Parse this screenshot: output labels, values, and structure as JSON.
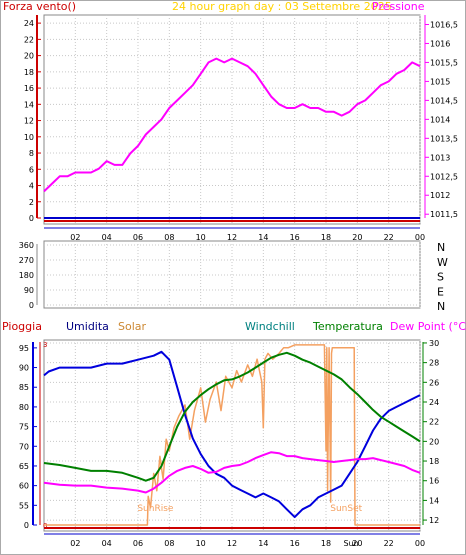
{
  "chart_data": [
    {
      "type": "line",
      "title": "24 hour graph day : 03 Settembre 2025",
      "left_label": "Forza vento()",
      "right_label": "Pressione",
      "x_ticks": [
        "02",
        "04",
        "06",
        "08",
        "10",
        "12",
        "14",
        "16",
        "18",
        "20",
        "22",
        "00"
      ],
      "x_range": [
        0,
        24
      ],
      "y_left_ticks": [
        "0",
        "2",
        "4",
        "6",
        "8",
        "10",
        "12",
        "14",
        "16",
        "18",
        "20",
        "22",
        "24"
      ],
      "ylim_left": [
        0,
        25
      ],
      "y_right_ticks": [
        "1011,5",
        "1012",
        "1012,5",
        "1013",
        "1013,5",
        "1014",
        "1014,5",
        "1015",
        "1015,5",
        "1016",
        "1016,5"
      ],
      "ylim_right": [
        1011.4,
        1016.75
      ],
      "grid": true,
      "series": [
        {
          "name": "Pressione",
          "axis": "right",
          "color": "#ff00ff",
          "x": [
            0.0,
            0.5,
            1.0,
            1.5,
            2.0,
            2.5,
            3.0,
            3.5,
            4.0,
            4.5,
            5.0,
            5.5,
            6.0,
            6.5,
            7.0,
            7.5,
            8.0,
            8.5,
            9.0,
            9.5,
            10.0,
            10.5,
            11.0,
            11.5,
            12.0,
            12.5,
            13.0,
            13.5,
            14.0,
            14.5,
            15.0,
            15.5,
            16.0,
            16.5,
            17.0,
            17.5,
            18.0,
            18.5,
            19.0,
            19.5,
            20.0,
            20.5,
            21.0,
            21.5,
            22.0,
            22.5,
            23.0,
            23.5,
            24.0
          ],
          "y": [
            1012.1,
            1012.3,
            1012.5,
            1012.5,
            1012.6,
            1012.6,
            1012.6,
            1012.7,
            1012.9,
            1012.8,
            1012.8,
            1013.1,
            1013.3,
            1013.6,
            1013.8,
            1014.0,
            1014.3,
            1014.5,
            1014.7,
            1014.9,
            1015.2,
            1015.5,
            1015.6,
            1015.5,
            1015.6,
            1015.5,
            1015.4,
            1015.2,
            1014.9,
            1014.6,
            1014.4,
            1014.3,
            1014.3,
            1014.4,
            1014.3,
            1014.3,
            1014.2,
            1014.2,
            1014.1,
            1014.2,
            1014.4,
            1014.5,
            1014.7,
            1014.9,
            1015.0,
            1015.2,
            1015.3,
            1015.5,
            1015.4
          ]
        },
        {
          "name": "Forza vento",
          "axis": "left",
          "color": "#0000cc",
          "x": [
            0,
            24
          ],
          "y": [
            0,
            0
          ]
        }
      ]
    },
    {
      "type": "scatter",
      "title": "",
      "right_label_letters": [
        "N",
        "W",
        "S",
        "E",
        "N"
      ],
      "y_left_ticks": [
        "0",
        "90",
        "180",
        "270",
        "360"
      ],
      "ylim": [
        0,
        360
      ],
      "x_range": [
        0,
        24
      ],
      "grid": true,
      "points": []
    },
    {
      "type": "line",
      "labels": {
        "rain": "Pioggia",
        "humidity": "Umidita",
        "solar": "Solar",
        "windchill": "Windchill",
        "temperature": "Temperatura",
        "dewpoint": "Dew Point (°C)",
        "sunrise": "SunRise",
        "sunset": "SunSet"
      },
      "x_ticks": [
        "02",
        "04",
        "06",
        "08",
        "10",
        "12",
        "14",
        "16",
        "18",
        "Sun",
        "20",
        "22",
        "00"
      ],
      "x_range": [
        0,
        24
      ],
      "y_left_outer_ticks": [
        "0",
        "55",
        "60",
        "65",
        "70",
        "75",
        "80",
        "85",
        "90",
        "95"
      ],
      "y_left_inner_ticks": [
        "0",
        "3"
      ],
      "y_right_ticks": [
        "12",
        "14",
        "16",
        "18",
        "20",
        "22",
        "24",
        "26",
        "28",
        "30"
      ],
      "ylim_humidity": [
        50,
        97
      ],
      "ylim_temperature": [
        11.5,
        30.3
      ],
      "sunrise_hour": 6.6,
      "sunset_hour": 19.8,
      "grid": true,
      "series": [
        {
          "name": "Umidita",
          "axis": "humidity",
          "color": "#0000dd",
          "x": [
            0.0,
            0.3,
            1.0,
            2.0,
            3.0,
            4.0,
            5.0,
            6.0,
            7.0,
            7.5,
            8.0,
            8.5,
            9.0,
            9.5,
            10.0,
            10.5,
            11.0,
            11.5,
            12.0,
            12.5,
            13.0,
            13.5,
            14.0,
            14.5,
            15.0,
            15.5,
            16.0,
            16.5,
            17.0,
            17.5,
            18.0,
            18.5,
            19.0,
            19.5,
            20.0,
            20.5,
            21.0,
            21.5,
            22.0,
            22.5,
            23.0,
            23.5,
            24.0
          ],
          "y": [
            88,
            89,
            90,
            90,
            90,
            91,
            91,
            92,
            93,
            94,
            92,
            85,
            78,
            72,
            68,
            65,
            63,
            62,
            60,
            59,
            58,
            57,
            58,
            57,
            56,
            54,
            52,
            54,
            55,
            57,
            58,
            59,
            60,
            63,
            66,
            70,
            74,
            77,
            79,
            80,
            81,
            82,
            83
          ]
        },
        {
          "name": "Temperatura",
          "axis": "temperature",
          "color": "#008000",
          "x": [
            0.0,
            1.0,
            2.0,
            3.0,
            4.0,
            5.0,
            6.0,
            6.5,
            7.0,
            7.5,
            8.0,
            8.5,
            9.0,
            9.5,
            10.0,
            10.5,
            11.0,
            11.5,
            12.0,
            12.5,
            13.0,
            13.5,
            14.0,
            14.5,
            15.0,
            15.5,
            16.0,
            16.5,
            17.0,
            17.5,
            18.0,
            18.5,
            19.0,
            19.5,
            20.0,
            20.5,
            21.0,
            21.5,
            22.0,
            22.5,
            23.0,
            23.5,
            24.0
          ],
          "y": [
            17.8,
            17.6,
            17.3,
            17.0,
            17.0,
            16.8,
            16.3,
            16.0,
            16.3,
            17.5,
            19.5,
            21.5,
            23.0,
            24.0,
            24.7,
            25.3,
            25.8,
            26.2,
            26.3,
            26.6,
            27.0,
            27.5,
            28.0,
            28.5,
            28.8,
            29.0,
            28.7,
            28.3,
            28.0,
            27.6,
            27.2,
            26.8,
            26.3,
            25.5,
            24.8,
            24.0,
            23.2,
            22.5,
            22.0,
            21.5,
            21.0,
            20.5,
            20.0
          ]
        },
        {
          "name": "Dew Point",
          "axis": "temperature",
          "color": "#ff00ff",
          "x": [
            0.0,
            1.0,
            2.0,
            3.0,
            4.0,
            5.0,
            6.0,
            6.5,
            7.0,
            7.5,
            8.0,
            8.5,
            9.0,
            9.5,
            10.0,
            10.5,
            11.0,
            11.5,
            12.0,
            12.5,
            13.0,
            13.5,
            14.0,
            14.5,
            15.0,
            15.5,
            16.0,
            16.5,
            17.0,
            17.5,
            18.0,
            18.5,
            19.0,
            19.5,
            20.0,
            20.5,
            21.0,
            21.5,
            22.0,
            22.5,
            23.0,
            23.5,
            24.0
          ],
          "y": [
            15.8,
            15.6,
            15.5,
            15.5,
            15.3,
            15.2,
            15.0,
            14.8,
            15.2,
            15.8,
            16.5,
            17.0,
            17.3,
            17.5,
            17.2,
            16.8,
            16.9,
            17.3,
            17.5,
            17.6,
            17.9,
            18.3,
            18.6,
            18.9,
            18.8,
            18.5,
            18.5,
            18.3,
            18.2,
            18.1,
            18.0,
            17.9,
            18.0,
            18.1,
            18.2,
            18.2,
            18.3,
            18.1,
            17.9,
            17.7,
            17.5,
            17.1,
            16.8
          ]
        },
        {
          "name": "Solar",
          "axis": "solar",
          "color": "#f4a060",
          "x": [
            0.0,
            6.6,
            6.65,
            6.8,
            7.0,
            7.2,
            7.4,
            7.6,
            7.8,
            8.0,
            8.3,
            8.6,
            9.0,
            9.3,
            9.6,
            10.0,
            10.3,
            10.6,
            11.0,
            11.3,
            11.6,
            12.0,
            12.3,
            12.6,
            13.0,
            13.3,
            13.6,
            13.9,
            14.0,
            14.1,
            14.3,
            14.6,
            15.0,
            15.3,
            15.6,
            16.0,
            16.5,
            17.0,
            17.5,
            17.9,
            18.0,
            18.05,
            18.1,
            18.2,
            18.3,
            18.35,
            18.4,
            18.6,
            19.0,
            19.5,
            19.8,
            19.85,
            24.0
          ],
          "y": [
            0,
            0,
            0.5,
            0.3,
            0.9,
            0.6,
            1.2,
            0.8,
            1.5,
            1.3,
            1.7,
            1.9,
            2.1,
            1.5,
            2.0,
            2.4,
            1.8,
            2.2,
            2.5,
            2.0,
            2.6,
            2.4,
            2.7,
            2.5,
            2.8,
            2.6,
            2.9,
            2.5,
            1.7,
            2.9,
            3.0,
            2.9,
            3.0,
            3.1,
            3.1,
            3.15,
            3.15,
            3.15,
            3.15,
            3.15,
            1.3,
            3.1,
            0.6,
            3.1,
            0.4,
            3.0,
            3.1,
            3.1,
            3.1,
            3.1,
            3.1,
            0,
            0
          ]
        },
        {
          "name": "Pioggia",
          "axis": "rain",
          "color": "#cc0000",
          "x": [
            0,
            24
          ],
          "y": [
            0,
            0
          ]
        }
      ]
    }
  ]
}
